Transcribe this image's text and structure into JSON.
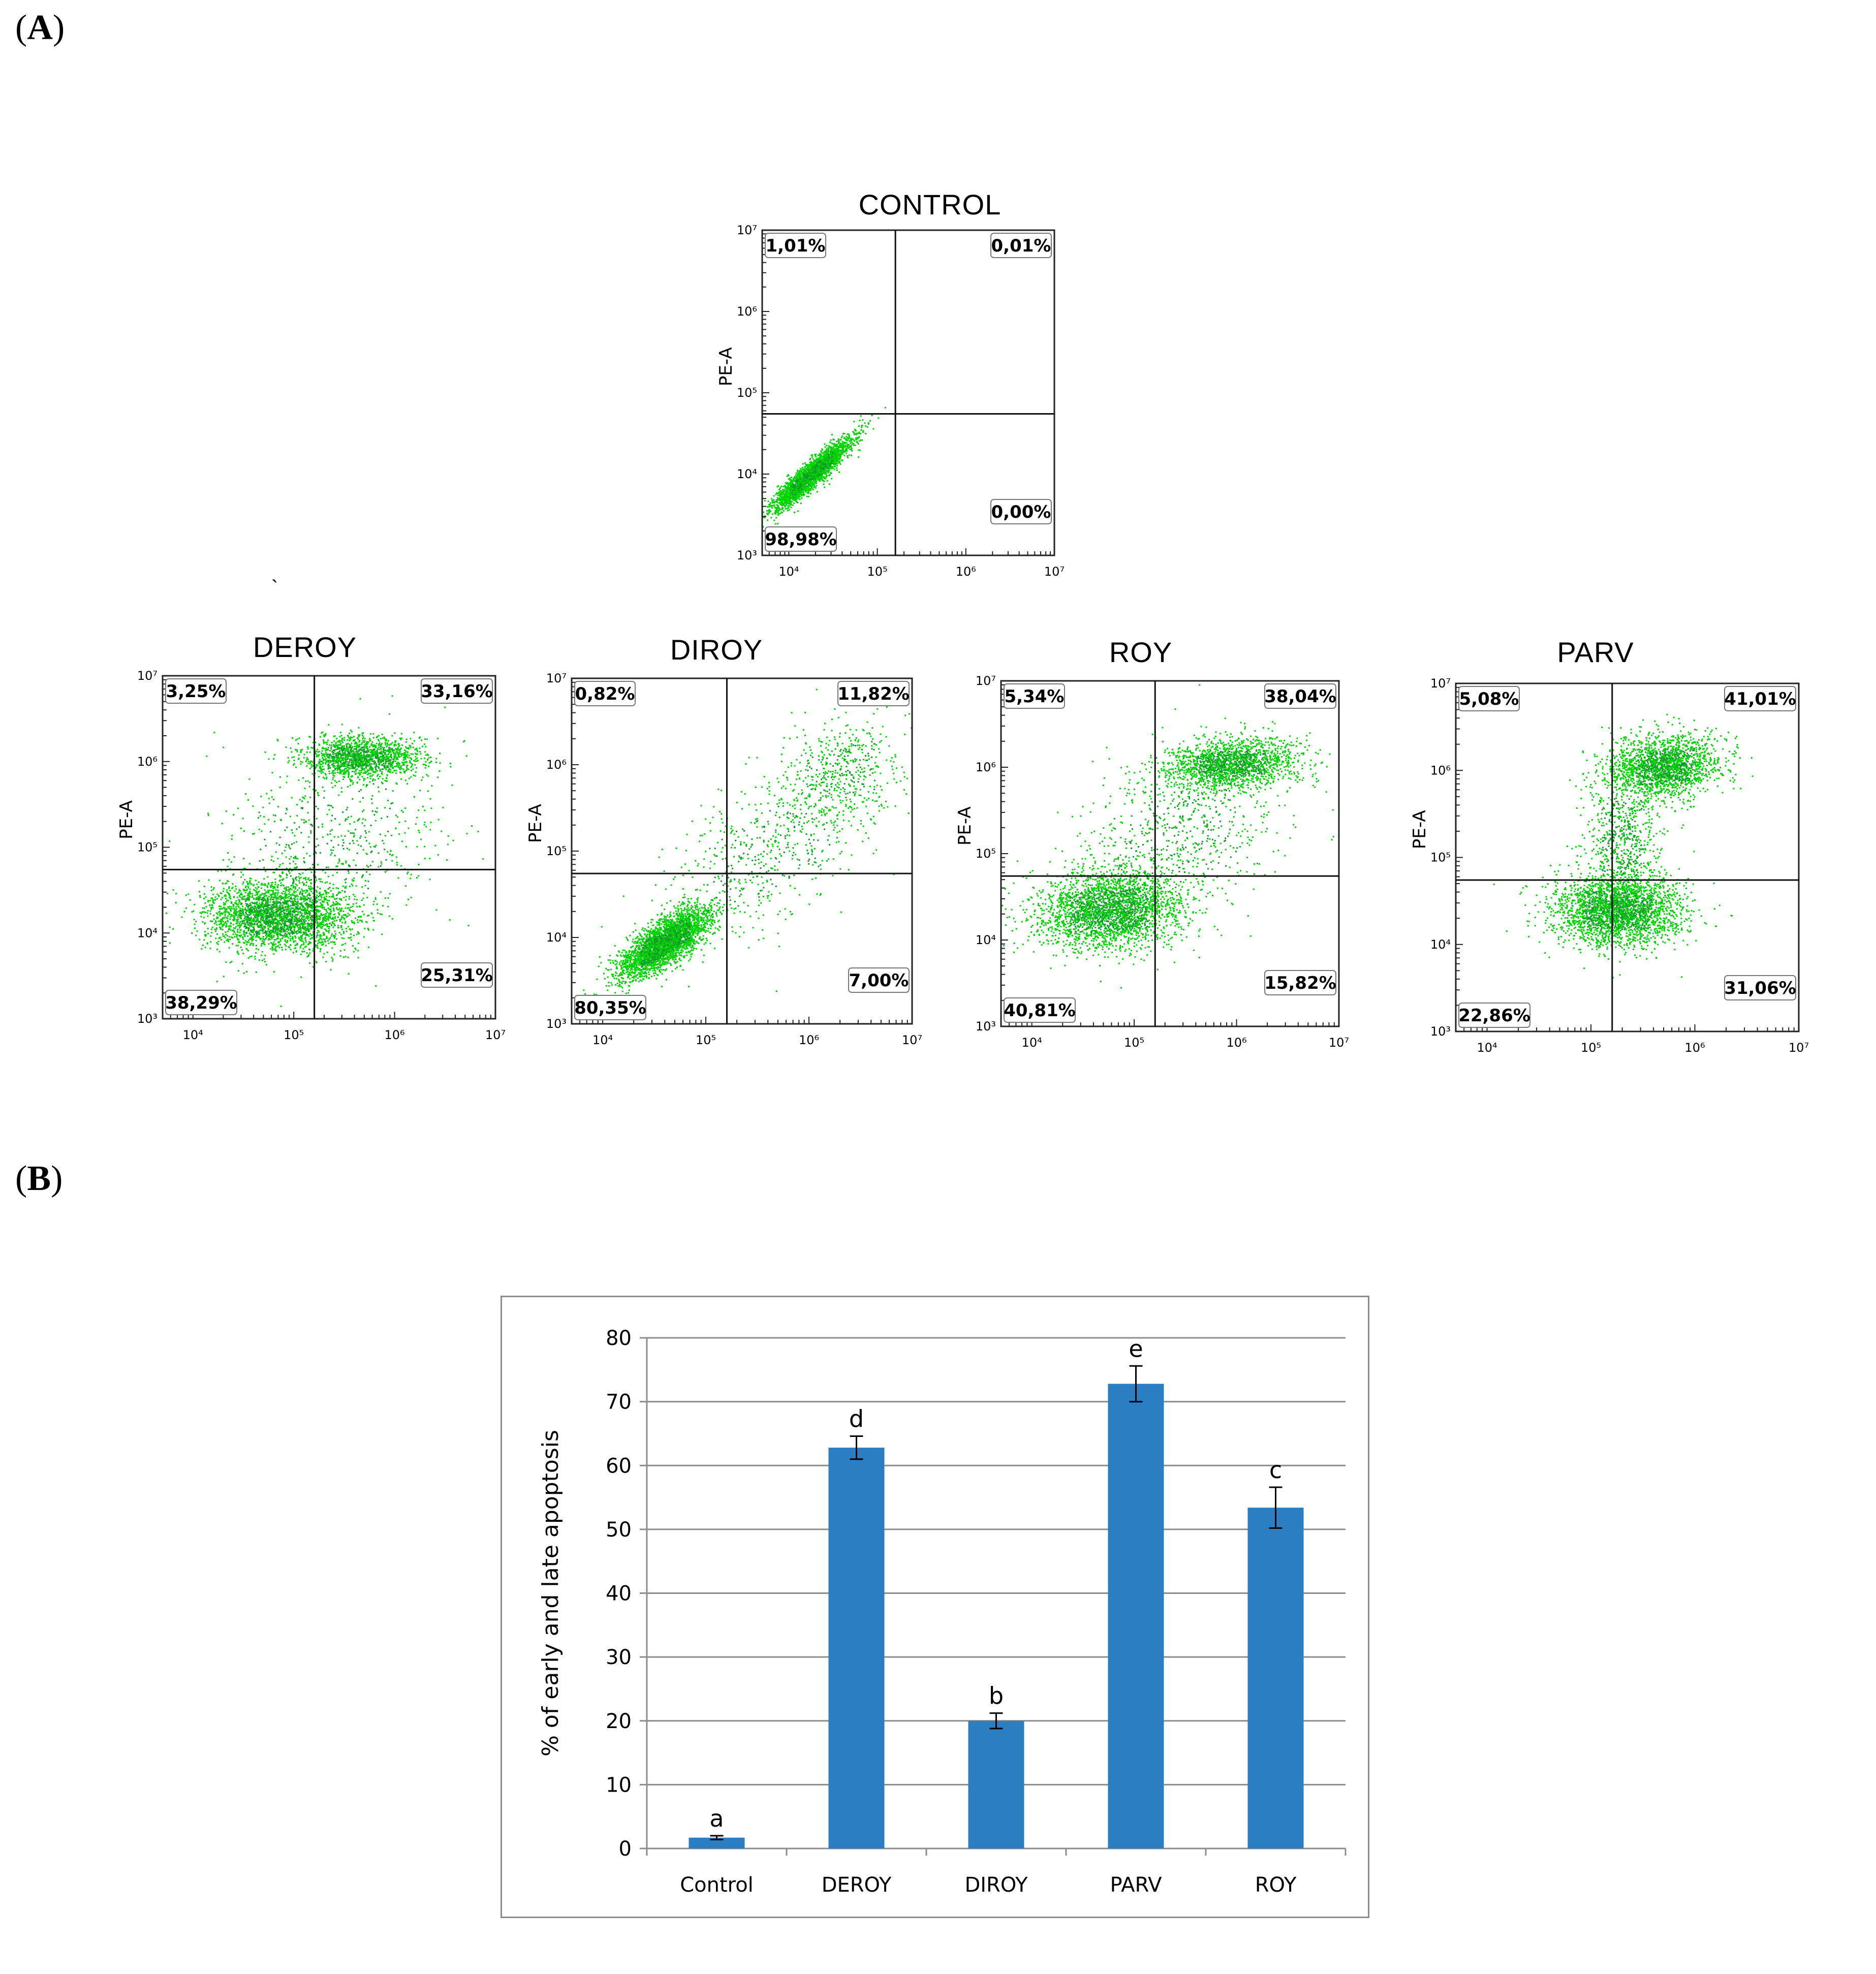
{
  "figure": {
    "panel_a_label": "A",
    "panel_b_label": "B",
    "stray_mark": "`"
  },
  "colors": {
    "dots": "#00d400",
    "dots_dark": "#119a2a",
    "bar": "#2a7ec1",
    "grid": "#8c8c8c"
  },
  "chart_data": [
    {
      "type": "scatter",
      "id": "control",
      "title": "CONTROL",
      "ylabel": "PE-A",
      "xlabel": "",
      "x_scale": "log",
      "y_scale": "log",
      "xlim": [
        5000,
        10000000
      ],
      "ylim": [
        1000,
        10000000
      ],
      "x_ticks": [
        "10⁴",
        "10⁵",
        "10⁶",
        "10⁷"
      ],
      "y_ticks": [
        "10³",
        "10⁴",
        "10⁵",
        "10⁶",
        "10⁷"
      ],
      "gate": {
        "x": 160000,
        "y": 55000
      },
      "quadrants": {
        "upper_left": "1,01%",
        "upper_right": "0,01%",
        "lower_left": "98,98%",
        "lower_right": "0,00%"
      },
      "populations": [
        {
          "cx": 4.25,
          "cy": 4.0,
          "sx": 0.22,
          "sy": 0.22,
          "rho": 0.92,
          "n": 2600
        }
      ]
    },
    {
      "type": "scatter",
      "id": "deroy",
      "title": "DEROY",
      "ylabel": "PE-A",
      "xlabel": "",
      "x_scale": "log",
      "y_scale": "log",
      "xlim": [
        5000,
        10000000
      ],
      "ylim": [
        1000,
        10000000
      ],
      "x_ticks": [
        "10⁴",
        "10⁵",
        "10⁶",
        "10⁷"
      ],
      "y_ticks": [
        "10³",
        "10⁴",
        "10⁵",
        "10⁶",
        "10⁷"
      ],
      "gate": {
        "x": 160000,
        "y": 55000
      },
      "quadrants": {
        "upper_left": "3,25%",
        "upper_right": "33,16%",
        "lower_left": "38,29%",
        "lower_right": "25,31%"
      },
      "populations": [
        {
          "cx": 4.85,
          "cy": 4.2,
          "sx": 0.35,
          "sy": 0.2,
          "rho": 0.0,
          "n": 2800
        },
        {
          "cx": 5.65,
          "cy": 6.05,
          "sx": 0.3,
          "sy": 0.12,
          "rho": 0.0,
          "n": 1500
        },
        {
          "cx": 5.3,
          "cy": 5.0,
          "sx": 0.6,
          "sy": 0.6,
          "rho": 0.3,
          "n": 700
        }
      ]
    },
    {
      "type": "scatter",
      "id": "diroy",
      "title": "DIROY",
      "ylabel": "PE-A",
      "xlabel": "",
      "x_scale": "log",
      "y_scale": "log",
      "xlim": [
        5000,
        10000000
      ],
      "ylim": [
        1000,
        10000000
      ],
      "x_ticks": [
        "10⁴",
        "10⁵",
        "10⁶",
        "10⁷"
      ],
      "y_ticks": [
        "10³",
        "10⁴",
        "10⁵",
        "10⁶",
        "10⁷"
      ],
      "gate": {
        "x": 160000,
        "y": 55000
      },
      "quadrants": {
        "upper_left": "0,82%",
        "upper_right": "11,82%",
        "lower_left": "80,35%",
        "lower_right": "7,00%"
      },
      "populations": [
        {
          "cx": 4.6,
          "cy": 3.95,
          "sx": 0.22,
          "sy": 0.2,
          "rho": 0.75,
          "n": 3000
        },
        {
          "cx": 6.3,
          "cy": 5.9,
          "sx": 0.3,
          "sy": 0.3,
          "rho": 0.2,
          "n": 450
        },
        {
          "cx": 5.6,
          "cy": 5.0,
          "sx": 0.55,
          "sy": 0.55,
          "rho": 0.6,
          "n": 600
        }
      ]
    },
    {
      "type": "scatter",
      "id": "roy",
      "title": "ROY",
      "ylabel": "PE-A",
      "xlabel": "",
      "x_scale": "log",
      "y_scale": "log",
      "xlim": [
        5000,
        10000000
      ],
      "ylim": [
        1000,
        10000000
      ],
      "x_ticks": [
        "10⁴",
        "10⁵",
        "10⁶",
        "10⁷"
      ],
      "y_ticks": [
        "10³",
        "10⁴",
        "10⁵",
        "10⁶",
        "10⁷"
      ],
      "gate": {
        "x": 160000,
        "y": 55000
      },
      "quadrants": {
        "upper_left": "5,34%",
        "upper_right": "38,04%",
        "lower_left": "40,81%",
        "lower_right": "15,82%"
      },
      "populations": [
        {
          "cx": 4.75,
          "cy": 4.35,
          "sx": 0.35,
          "sy": 0.22,
          "rho": 0.1,
          "n": 2600
        },
        {
          "cx": 5.95,
          "cy": 6.05,
          "sx": 0.32,
          "sy": 0.14,
          "rho": 0.2,
          "n": 1700
        },
        {
          "cx": 5.4,
          "cy": 5.2,
          "sx": 0.55,
          "sy": 0.55,
          "rho": 0.4,
          "n": 800
        }
      ]
    },
    {
      "type": "scatter",
      "id": "parv",
      "title": "PARV",
      "ylabel": "PE-A",
      "xlabel": "",
      "x_scale": "log",
      "y_scale": "log",
      "xlim": [
        5000,
        10000000
      ],
      "ylim": [
        1000,
        10000000
      ],
      "x_ticks": [
        "10⁴",
        "10⁵",
        "10⁶",
        "10⁷"
      ],
      "y_ticks": [
        "10³",
        "10⁴",
        "10⁵",
        "10⁶",
        "10⁷"
      ],
      "gate": {
        "x": 160000,
        "y": 55000
      },
      "quadrants": {
        "upper_left": "5,08%",
        "upper_right": "41,01%",
        "lower_left": "22,86%",
        "lower_right": "31,06%"
      },
      "populations": [
        {
          "cx": 5.25,
          "cy": 4.4,
          "sx": 0.3,
          "sy": 0.2,
          "rho": 0.0,
          "n": 2600
        },
        {
          "cx": 5.7,
          "cy": 6.05,
          "sx": 0.26,
          "sy": 0.18,
          "rho": 0.1,
          "n": 1900
        },
        {
          "cx": 5.3,
          "cy": 5.2,
          "sx": 0.18,
          "sy": 0.45,
          "rho": 0.0,
          "n": 700
        }
      ]
    },
    {
      "type": "bar",
      "id": "apoptosis",
      "title": "",
      "xlabel": "",
      "ylabel": "% of early and late apoptosis",
      "categories": [
        "Control",
        "DEROY",
        "DIROY",
        "PARV",
        "ROY"
      ],
      "values": [
        1.7,
        62.8,
        20.0,
        72.8,
        53.4
      ],
      "errors": [
        0.3,
        1.8,
        1.2,
        2.8,
        3.2
      ],
      "significance": [
        "a",
        "d",
        "b",
        "e",
        "c"
      ],
      "ylim": [
        0,
        80
      ],
      "y_ticks": [
        "0",
        "10",
        "20",
        "30",
        "40",
        "50",
        "60",
        "70",
        "80"
      ],
      "grid": true
    }
  ]
}
